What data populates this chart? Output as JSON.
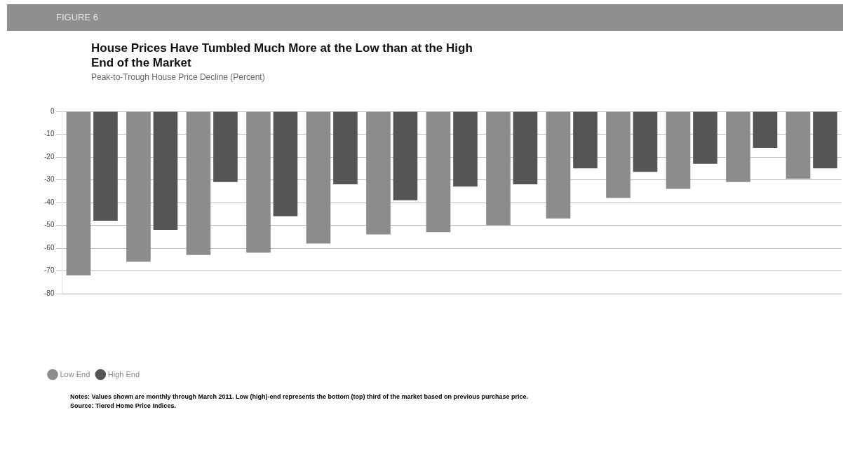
{
  "chart_data": {
    "type": "bar",
    "title": "House Prices Have Tumbled Much More at the Low than at the High End of the Market",
    "subtitle": "Peak-to-Trough House Price Decline (Percent)",
    "categories": [
      null,
      null,
      null,
      null,
      null,
      null,
      null,
      null,
      null,
      null,
      null,
      null,
      null
    ],
    "series": [
      {
        "name": "Low End",
        "color": "#8c8c8c",
        "values": [
          -72,
          -66,
          -63,
          -62,
          -58,
          -54,
          -53,
          -50,
          -47,
          -38,
          -34,
          -31,
          -29.5
        ]
      },
      {
        "name": "High End",
        "color": "#555555",
        "values": [
          -48,
          -52,
          -31,
          -46,
          -32,
          -39,
          -33,
          -32,
          -25,
          -26.5,
          -23,
          -16,
          -25
        ]
      }
    ],
    "ylim": [
      -80,
      0
    ],
    "yticks": [
      0,
      -10,
      -20,
      -30,
      -40,
      -50,
      -60,
      -70,
      -80
    ],
    "grid": "y",
    "legend": "bottom left",
    "annotations": [
      "FIGURE 6",
      "Notes: Values shown are monthly through March 2011. Low (high)-end represents the bottom (top) third of the market based on previous purchase price.",
      "Source: Tiered Home Price Indices."
    ]
  }
}
